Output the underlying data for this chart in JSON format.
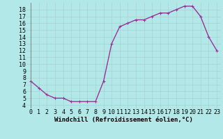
{
  "x": [
    0,
    1,
    2,
    3,
    4,
    5,
    6,
    7,
    8,
    9,
    10,
    11,
    12,
    13,
    14,
    15,
    16,
    17,
    18,
    19,
    20,
    21,
    22,
    23
  ],
  "y": [
    7.5,
    6.5,
    5.5,
    5.0,
    5.0,
    4.5,
    4.5,
    4.5,
    4.5,
    7.5,
    13.0,
    15.5,
    16.0,
    16.5,
    16.5,
    17.0,
    17.5,
    17.5,
    18.0,
    18.5,
    18.5,
    17.0,
    14.0,
    12.0
  ],
  "line_color": "#993399",
  "marker_color": "#993399",
  "bg_color": "#b3e8e8",
  "grid_color": "#aad4d4",
  "xlabel": "Windchill (Refroidissement éolien,°C)",
  "xlim": [
    -0.5,
    23.5
  ],
  "ylim": [
    3.5,
    19.0
  ],
  "yticks": [
    4,
    5,
    6,
    7,
    8,
    9,
    10,
    11,
    12,
    13,
    14,
    15,
    16,
    17,
    18
  ],
  "xticks": [
    0,
    1,
    2,
    3,
    4,
    5,
    6,
    7,
    8,
    9,
    10,
    11,
    12,
    13,
    14,
    15,
    16,
    17,
    18,
    19,
    20,
    21,
    22,
    23
  ],
  "xlabel_fontsize": 6.5,
  "tick_fontsize": 6.0,
  "line_width": 1.0,
  "marker_size": 2.5
}
